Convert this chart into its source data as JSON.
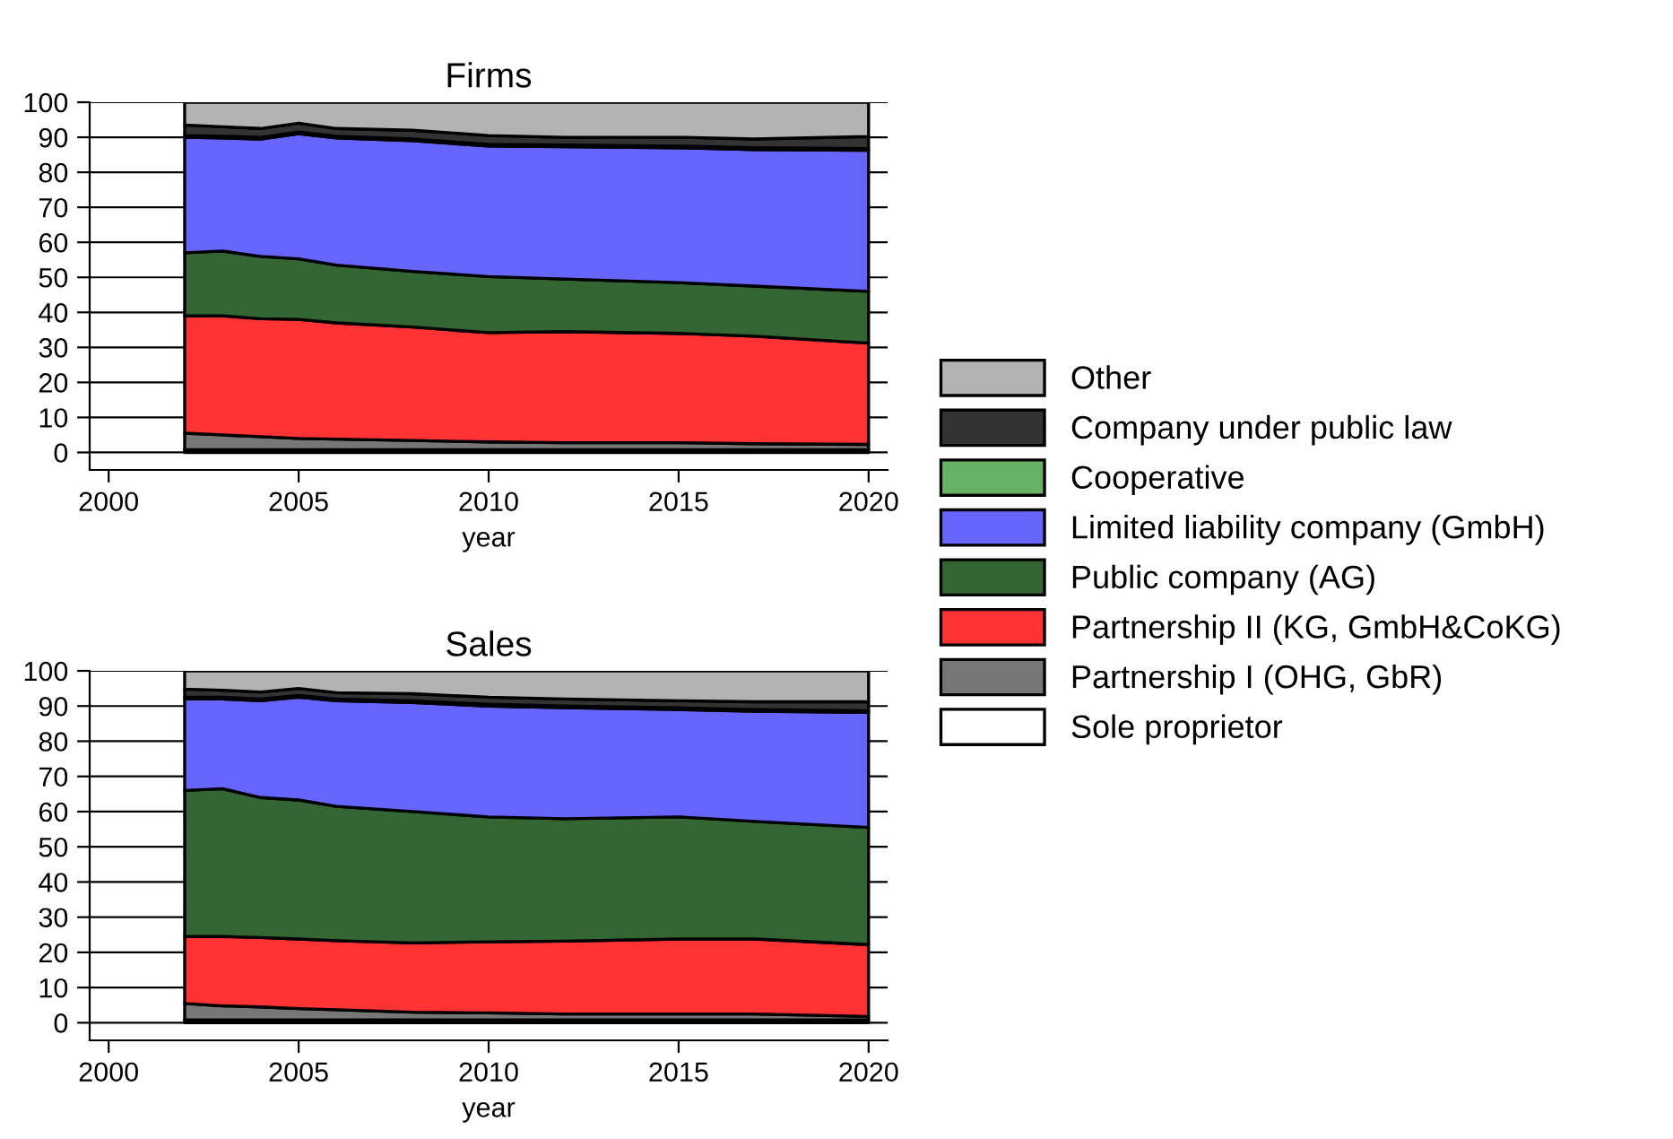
{
  "chart_data": [
    {
      "type": "area",
      "stacked": true,
      "title": "Firms",
      "xlabel": "year",
      "x": [
        2002,
        2003,
        2004,
        2005,
        2006,
        2008,
        2010,
        2012,
        2015,
        2017,
        2020
      ],
      "xlim": [
        1999.5,
        2020.5
      ],
      "xticks": [
        2000,
        2005,
        2010,
        2015,
        2020
      ],
      "ylim": [
        -5,
        100
      ],
      "yticks": [
        0,
        10,
        20,
        30,
        40,
        50,
        60,
        70,
        80,
        90,
        100
      ],
      "grid": "y",
      "legend": "right",
      "series": [
        {
          "name": "Sole proprietor",
          "color": "#ffffff",
          "values": [
            0.8,
            0.8,
            0.8,
            0.8,
            0.8,
            0.8,
            0.8,
            0.8,
            0.8,
            0.8,
            0.8
          ]
        },
        {
          "name": "Partnership I (OHG, GbR)",
          "color": "#777777",
          "values": [
            4.7,
            4.2,
            3.7,
            3.2,
            3.0,
            2.6,
            2.2,
            2.0,
            2.0,
            1.7,
            1.5
          ]
        },
        {
          "name": "Partnership II (KG, GmbH&CoKG)",
          "color": "#ff3333",
          "values": [
            33.5,
            34,
            33.7,
            34,
            33.2,
            32.4,
            31.2,
            31.7,
            31.2,
            30.7,
            28.9
          ]
        },
        {
          "name": "Public company (AG)",
          "color": "#336633",
          "values": [
            18,
            18.5,
            17.8,
            17.3,
            16.5,
            15.9,
            16,
            15,
            14.5,
            14.3,
            14.8
          ]
        },
        {
          "name": "Limited liability company (GmbH)",
          "color": "#6666ff",
          "values": [
            33,
            32.3,
            33.5,
            35.7,
            36.3,
            37.3,
            37.3,
            37.8,
            38.5,
            39,
            40.3
          ]
        },
        {
          "name": "Cooperative",
          "color": "#66b266",
          "values": [
            0.5,
            0.5,
            0.5,
            0.5,
            0.5,
            0.5,
            0.5,
            0.5,
            0.5,
            0.5,
            0.5
          ]
        },
        {
          "name": "Company under public law",
          "color": "#333333",
          "values": [
            3,
            2.7,
            2.5,
            2.5,
            2.2,
            2.5,
            2.5,
            2.2,
            2.5,
            2.5,
            3.4
          ]
        },
        {
          "name": "Other",
          "color": "#b3b3b3",
          "values": [
            6.5,
            7,
            7.5,
            6,
            7.5,
            8,
            9.5,
            10,
            10,
            10.5,
            9.8
          ]
        }
      ]
    },
    {
      "type": "area",
      "stacked": true,
      "title": "Sales",
      "xlabel": "year",
      "x": [
        2002,
        2003,
        2004,
        2005,
        2006,
        2008,
        2010,
        2012,
        2015,
        2017,
        2020
      ],
      "xlim": [
        1999.5,
        2020.5
      ],
      "xticks": [
        2000,
        2005,
        2010,
        2015,
        2020
      ],
      "ylim": [
        -5,
        100
      ],
      "yticks": [
        0,
        10,
        20,
        30,
        40,
        50,
        60,
        70,
        80,
        90,
        100
      ],
      "grid": "y",
      "series": [
        {
          "color": "#ffffff",
          "values": [
            0.8,
            0.8,
            0.8,
            0.8,
            0.8,
            0.8,
            0.8,
            0.8,
            0.8,
            0.8,
            0.8
          ]
        },
        {
          "color": "#777777",
          "values": [
            4.7,
            4.0,
            3.7,
            3.2,
            2.9,
            2.2,
            2.0,
            1.7,
            1.7,
            1.7,
            1.0
          ]
        },
        {
          "color": "#ff3333",
          "values": [
            19,
            19.7,
            19.7,
            19.8,
            19.6,
            19.7,
            20.2,
            20.7,
            21.3,
            21.3,
            20.4
          ]
        },
        {
          "color": "#336633",
          "values": [
            41.5,
            42,
            39.8,
            39.5,
            38.2,
            37.3,
            35.5,
            34.8,
            34.7,
            33.4,
            33.3
          ]
        },
        {
          "color": "#6666ff",
          "values": [
            26,
            25.5,
            27.5,
            29.2,
            30,
            31,
            31.5,
            31.5,
            30.5,
            31.3,
            32.7
          ]
        },
        {
          "color": "#66b266",
          "values": [
            0.5,
            0.5,
            0.5,
            0.5,
            0.5,
            0.5,
            0.5,
            0.5,
            0.5,
            0.5,
            0.5
          ]
        },
        {
          "color": "#333333",
          "values": [
            2.3,
            2,
            2,
            2,
            1.8,
            2,
            2,
            2,
            2,
            2.2,
            2.5
          ]
        },
        {
          "color": "#b3b3b3",
          "values": [
            5.2,
            5.5,
            6,
            5,
            6.2,
            6.5,
            7.5,
            8,
            8.5,
            8.8,
            8.8
          ]
        }
      ]
    }
  ]
}
